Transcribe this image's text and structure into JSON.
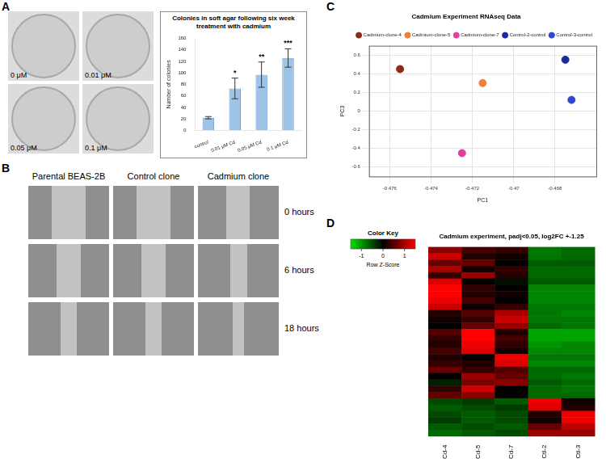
{
  "figure": {
    "A": {
      "panel_label": "A",
      "dish_labels": [
        "0 μM",
        "0.01 μM",
        "0.05 μM",
        "0.1 μM"
      ]
    },
    "B": {
      "panel_label": "B",
      "columns": [
        "Parental BEAS-2B",
        "Control clone",
        "Cadmium clone"
      ],
      "rows": [
        "0 hours",
        "6 hours",
        "18 hours"
      ]
    },
    "C": {
      "panel_label": "C"
    },
    "D": {
      "panel_label": "D"
    }
  },
  "chart_data": [
    {
      "type": "bar",
      "title": "Colonies in soft agar following six week treatment with cadmium",
      "y_label": "Number of colonies",
      "categories": [
        "control",
        "0.01 μM Cd",
        "0.05 μM Cd",
        "0.1 μM Cd"
      ],
      "values": [
        22,
        73,
        97,
        126
      ],
      "errors": [
        2,
        18,
        22,
        16
      ],
      "significance": [
        null,
        "*",
        "**",
        "***"
      ],
      "color": "#9dc3e6",
      "ylim": [
        0,
        160
      ],
      "yticks": [
        0,
        20,
        40,
        60,
        80,
        100,
        120,
        140,
        160
      ],
      "grid": false
    },
    {
      "type": "scatter",
      "title": "Cadmium Experiment RNAseq Data",
      "x_label": "PC1",
      "y_label": "PC3",
      "series": [
        {
          "name": "Cadmium-clone-4",
          "color": "#8b2a16",
          "x": [
            -0.4755
          ],
          "values": [
            0.45
          ]
        },
        {
          "name": "Cadmium-clone-5",
          "color": "#f07e3c",
          "x": [
            -0.4715
          ],
          "values": [
            0.3
          ]
        },
        {
          "name": "Cadmium-clone-7",
          "color": "#e0409c",
          "x": [
            -0.4725
          ],
          "values": [
            -0.45
          ]
        },
        {
          "name": "Control-2-control",
          "color": "#1a2a9a",
          "x": [
            -0.4675
          ],
          "values": [
            0.55
          ]
        },
        {
          "name": "Control-3-control",
          "color": "#2a48d0",
          "x": [
            -0.4672
          ],
          "values": [
            0.12
          ]
        }
      ],
      "xlim": [
        -0.477,
        -0.466
      ],
      "xticks": [
        -0.476,
        -0.474,
        -0.472,
        -0.47,
        -0.468
      ],
      "ylim": [
        -0.7,
        0.7
      ],
      "yticks": [
        -0.6,
        -0.4,
        -0.2,
        0,
        0.2,
        0.4,
        0.6
      ],
      "legend": "top-right",
      "grid": true
    },
    {
      "type": "heatmap",
      "title": "Cadmium experiment, padj<0.05, log2FC +-1.25",
      "categories": [
        "Cd-4",
        "Cd-5",
        "Cd-7",
        "Ctl-2",
        "Ctl-3"
      ],
      "cells": [
        [
          0.8,
          0.4,
          0.3,
          -0.8,
          -0.7
        ],
        [
          1.2,
          0.2,
          0.1,
          -0.8,
          -0.7
        ],
        [
          0.6,
          0.6,
          0.0,
          -0.6,
          -0.6
        ],
        [
          1.0,
          0.1,
          0.3,
          -0.7,
          -0.7
        ],
        [
          0.3,
          0.9,
          0.2,
          -0.7,
          -0.7
        ],
        [
          1.3,
          0.0,
          -0.1,
          -0.6,
          -0.6
        ],
        [
          1.5,
          0.3,
          0.0,
          -0.9,
          -0.9
        ],
        [
          1.5,
          0.2,
          0.1,
          -0.9,
          -0.9
        ],
        [
          1.4,
          0.4,
          0.0,
          -0.9,
          -0.9
        ],
        [
          1.2,
          0.1,
          0.3,
          -0.8,
          -0.8
        ],
        [
          0.2,
          0.5,
          1.0,
          -0.8,
          -0.9
        ],
        [
          0.1,
          0.3,
          1.2,
          -0.8,
          -0.8
        ],
        [
          0.0,
          0.6,
          0.9,
          -0.7,
          -0.8
        ],
        [
          0.5,
          1.5,
          0.2,
          -1.1,
          -1.1
        ],
        [
          0.3,
          1.5,
          0.4,
          -1.1,
          -1.1
        ],
        [
          0.2,
          1.4,
          0.3,
          -1.0,
          -0.9
        ],
        [
          0.4,
          1.3,
          0.1,
          -0.9,
          -0.9
        ],
        [
          0.2,
          0.0,
          1.4,
          -0.8,
          -0.8
        ],
        [
          0.3,
          0.2,
          1.3,
          -0.9,
          -0.9
        ],
        [
          0.6,
          0.3,
          0.5,
          -0.7,
          -0.7
        ],
        [
          0.0,
          0.9,
          0.6,
          -0.7,
          -0.8
        ],
        [
          -0.2,
          0.7,
          0.8,
          -0.6,
          -0.7
        ],
        [
          0.3,
          1.2,
          0.0,
          -0.7,
          -0.8
        ],
        [
          0.6,
          0.8,
          0.0,
          -0.7,
          -0.7
        ],
        [
          -0.5,
          -0.4,
          -0.6,
          1.4,
          0.1
        ],
        [
          -0.6,
          -0.5,
          -0.4,
          1.3,
          0.2
        ],
        [
          -0.5,
          -0.6,
          -0.5,
          0.2,
          1.4
        ],
        [
          -0.4,
          -0.6,
          -0.5,
          0.1,
          1.4
        ],
        [
          -0.6,
          -0.5,
          -0.6,
          0.6,
          1.1
        ],
        [
          -0.7,
          -0.6,
          -0.5,
          0.9,
          0.9
        ]
      ],
      "color_key_title": "Color Key",
      "color_key_label": "Row Z-Score",
      "color_range": [
        -1.5,
        1.5
      ],
      "color_ticks": [
        -1,
        0,
        1
      ],
      "colors": [
        "#00e000",
        "#000000",
        "#ff0000"
      ]
    }
  ]
}
